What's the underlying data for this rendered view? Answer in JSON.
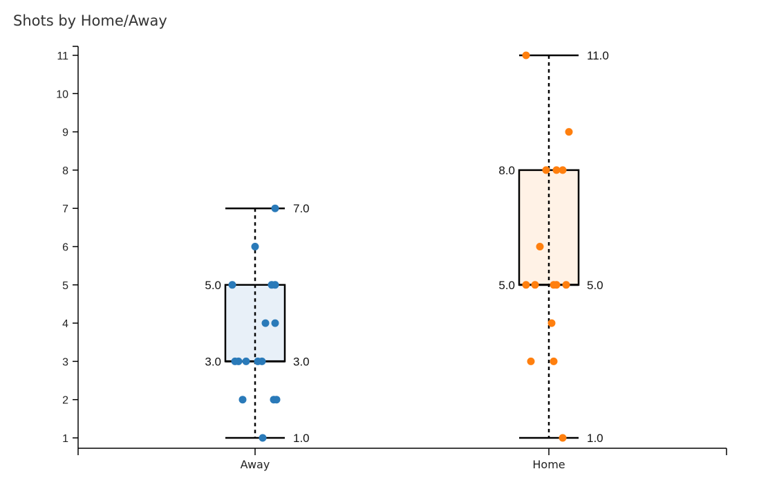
{
  "chart_data": {
    "type": "box",
    "title": "Shots by Home/Away",
    "xlabel": "",
    "ylabel": "",
    "ylim": [
      1,
      11
    ],
    "y_ticks": [
      1,
      2,
      3,
      4,
      5,
      6,
      7,
      8,
      9,
      10,
      11
    ],
    "categories": [
      "Away",
      "Home"
    ],
    "series": [
      {
        "category": "Away",
        "color": "#2a7ab9",
        "fill": "#e8f0f8",
        "min": 1.0,
        "q1": 3.0,
        "median": 3.0,
        "q3": 5.0,
        "max": 7.0,
        "min_label": "1.0",
        "q1_label": "3.0",
        "median_label": "3.0",
        "q3_label": "5.0",
        "max_label": "7.0",
        "points": [
          {
            "jitter": 0.29,
            "y": 7
          },
          {
            "jitter": 0.0,
            "y": 6
          },
          {
            "jitter": -0.33,
            "y": 5
          },
          {
            "jitter": 0.24,
            "y": 5
          },
          {
            "jitter": 0.29,
            "y": 5
          },
          {
            "jitter": 0.15,
            "y": 4
          },
          {
            "jitter": 0.29,
            "y": 4
          },
          {
            "jitter": -0.29,
            "y": 3
          },
          {
            "jitter": -0.24,
            "y": 3
          },
          {
            "jitter": -0.13,
            "y": 3
          },
          {
            "jitter": 0.04,
            "y": 3
          },
          {
            "jitter": 0.1,
            "y": 3
          },
          {
            "jitter": -0.18,
            "y": 2
          },
          {
            "jitter": 0.27,
            "y": 2
          },
          {
            "jitter": 0.31,
            "y": 2
          },
          {
            "jitter": 0.11,
            "y": 1
          }
        ]
      },
      {
        "category": "Home",
        "color": "#ff7f0e",
        "fill": "#fff2e6",
        "min": 1.0,
        "q1": 5.0,
        "median": 5.0,
        "q3": 8.0,
        "max": 11.0,
        "min_label": "1.0",
        "q1_label": "5.0",
        "median_label": "5.0",
        "q3_label": "8.0",
        "max_label": "11.0",
        "points": [
          {
            "jitter": -0.33,
            "y": 11
          },
          {
            "jitter": 0.29,
            "y": 9
          },
          {
            "jitter": -0.04,
            "y": 8
          },
          {
            "jitter": 0.11,
            "y": 8
          },
          {
            "jitter": 0.2,
            "y": 8
          },
          {
            "jitter": -0.13,
            "y": 6
          },
          {
            "jitter": -0.33,
            "y": 5
          },
          {
            "jitter": -0.2,
            "y": 5
          },
          {
            "jitter": 0.07,
            "y": 5
          },
          {
            "jitter": 0.11,
            "y": 5
          },
          {
            "jitter": 0.25,
            "y": 5
          },
          {
            "jitter": 0.04,
            "y": 4
          },
          {
            "jitter": -0.26,
            "y": 3
          },
          {
            "jitter": 0.07,
            "y": 3
          },
          {
            "jitter": 0.2,
            "y": 1
          }
        ]
      }
    ]
  }
}
